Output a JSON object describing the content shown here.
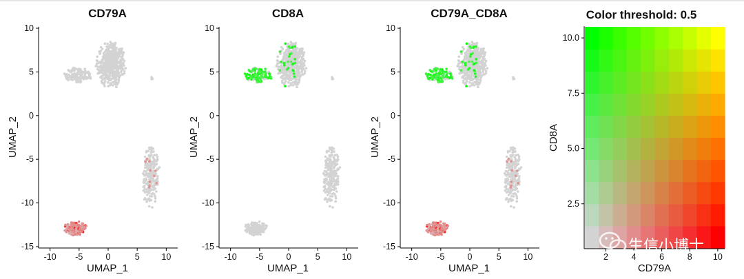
{
  "chart_data": [
    {
      "type": "scatter",
      "title": "CD79A",
      "xlabel": "UMAP_1",
      "ylabel": "UMAP_2",
      "xlim": [
        -11.5,
        11.5
      ],
      "ylim": [
        -15,
        10
      ],
      "xticks": [
        -10,
        -5,
        0,
        5,
        10
      ],
      "yticks": [
        -15,
        -10,
        -5,
        0,
        5,
        10
      ],
      "clusters": [
        {
          "name": "top",
          "cx": 0.5,
          "cy": 5.8,
          "rx": 2.6,
          "ry": 2.8,
          "n": 520
        },
        {
          "name": "top-left arm",
          "cx": -5.2,
          "cy": 4.6,
          "rx": 2.4,
          "ry": 0.9,
          "n": 150
        },
        {
          "name": "small isolated",
          "cx": 7.5,
          "cy": 4.4,
          "rx": 0.3,
          "ry": 0.25,
          "n": 4
        },
        {
          "name": "right",
          "cx": 7.3,
          "cy": -7.0,
          "rx": 1.6,
          "ry": 3.6,
          "n": 240
        },
        {
          "name": "bottom-left",
          "cx": -5.6,
          "cy": -12.9,
          "rx": 2.0,
          "ry": 0.85,
          "n": 170
        }
      ],
      "expression": {
        "gene": "CD79A",
        "color": "#ff0000",
        "high_cluster": "bottom-left"
      }
    },
    {
      "type": "scatter",
      "title": "CD8A",
      "xlabel": "UMAP_1",
      "ylabel": "UMAP_2",
      "xlim": [
        -11.5,
        11.5
      ],
      "ylim": [
        -15,
        10
      ],
      "xticks": [
        -10,
        -5,
        0,
        5,
        10
      ],
      "yticks": [
        -15,
        -10,
        -5,
        0,
        5,
        10
      ],
      "expression": {
        "gene": "CD8A",
        "color": "#00ff00",
        "high_cluster": "top-left arm"
      }
    },
    {
      "type": "scatter",
      "title": "CD79A_CD8A",
      "xlabel": "UMAP_1",
      "ylabel": "UMAP_2",
      "xlim": [
        -11.5,
        11.5
      ],
      "ylim": [
        -15,
        10
      ],
      "xticks": [
        -10,
        -5,
        0,
        5,
        10
      ],
      "yticks": [
        -15,
        -10,
        -5,
        0,
        5,
        10
      ],
      "expression": {
        "genes": [
          "CD79A",
          "CD8A"
        ],
        "colors": [
          "#ff0000",
          "#00ff00"
        ]
      }
    },
    {
      "type": "heatmap",
      "title": "Color threshold: 0.5",
      "xlabel": "CD79A",
      "ylabel": "CD8A",
      "xlim": [
        0.5,
        10.5
      ],
      "ylim": [
        0.5,
        10.5
      ],
      "xticks": [
        2,
        4,
        6,
        8,
        10
      ],
      "yticks": [
        2.5,
        5.0,
        7.5,
        10.0
      ],
      "grid_size": 10,
      "corner_colors": {
        "low_low": "#d3d3d3",
        "high_x": "#ff0000",
        "high_y": "#00ff00",
        "high_both": "#ffff00"
      }
    }
  ],
  "watermark": "生信小博士",
  "colors": {
    "base_point": "#d3d3d3"
  }
}
